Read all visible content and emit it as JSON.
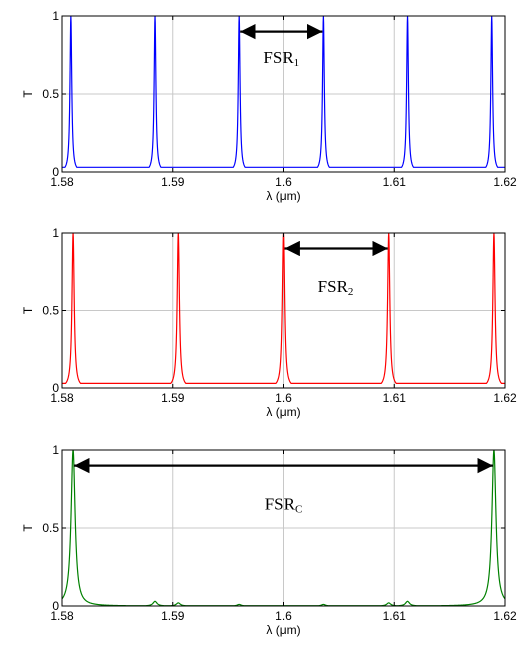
{
  "chart_data": [
    {
      "type": "line",
      "title": "",
      "xlabel": "λ (μm)",
      "ylabel": "T",
      "xlim": [
        1.58,
        1.62
      ],
      "ylim": [
        0,
        1
      ],
      "x_ticks": [
        "1.58",
        "1.59",
        "1.6",
        "1.61",
        "1.62"
      ],
      "y_ticks": [
        "0",
        "0.5",
        "1"
      ],
      "grid": true,
      "series": [
        {
          "color": "#0000ff",
          "shape": "comb",
          "finesse": 40,
          "contrast": 0.05,
          "peaks_x": [
            1.5808,
            1.5884,
            1.596,
            1.6036,
            1.6112,
            1.6188
          ],
          "peak_values": [
            1,
            1,
            1,
            1,
            1,
            1
          ]
        }
      ],
      "annotation": {
        "label_main": "FSR",
        "label_sub": "1",
        "x_from": 1.596,
        "x_to": 1.6036,
        "y": 0.9,
        "label_x": 1.5998,
        "label_y": 0.7
      }
    },
    {
      "type": "line",
      "title": "",
      "xlabel": "λ (μm)",
      "ylabel": "T",
      "xlim": [
        1.58,
        1.62
      ],
      "ylim": [
        0,
        1
      ],
      "x_ticks": [
        "1.58",
        "1.59",
        "1.6",
        "1.61",
        "1.62"
      ],
      "y_ticks": [
        "0",
        "0.5",
        "1"
      ],
      "grid": true,
      "series": [
        {
          "color": "#ff0000",
          "shape": "comb",
          "finesse": 40,
          "contrast": 0.05,
          "peaks_x": [
            1.581,
            1.5905,
            1.6,
            1.6095,
            1.619
          ],
          "peak_values": [
            1,
            1,
            1,
            1,
            1
          ]
        }
      ],
      "annotation": {
        "label_main": "FSR",
        "label_sub": "2",
        "x_from": 1.6,
        "x_to": 1.6095,
        "y": 0.9,
        "label_x": 1.6047,
        "label_y": 0.62
      }
    },
    {
      "type": "line",
      "title": "",
      "xlabel": "λ (μm)",
      "ylabel": "T",
      "xlim": [
        1.58,
        1.62
      ],
      "ylim": [
        0,
        1
      ],
      "x_ticks": [
        "1.58",
        "1.59",
        "1.6",
        "1.61",
        "1.62"
      ],
      "y_ticks": [
        "0",
        "0.5",
        "1"
      ],
      "grid": true,
      "series": [
        {
          "color": "#008000",
          "shape": "product",
          "peaks_x": [
            1.581,
            1.5884,
            1.5905,
            1.596,
            1.6036,
            1.6095,
            1.6112,
            1.619
          ],
          "peak_values": [
            1,
            0.03,
            0.02,
            0.01,
            0.01,
            0.02,
            0.03,
            1
          ]
        }
      ],
      "annotation": {
        "label_main": "FSR",
        "label_sub": "C",
        "x_from": 1.581,
        "x_to": 1.619,
        "y": 0.9,
        "label_x": 1.6,
        "label_y": 0.62
      }
    }
  ]
}
